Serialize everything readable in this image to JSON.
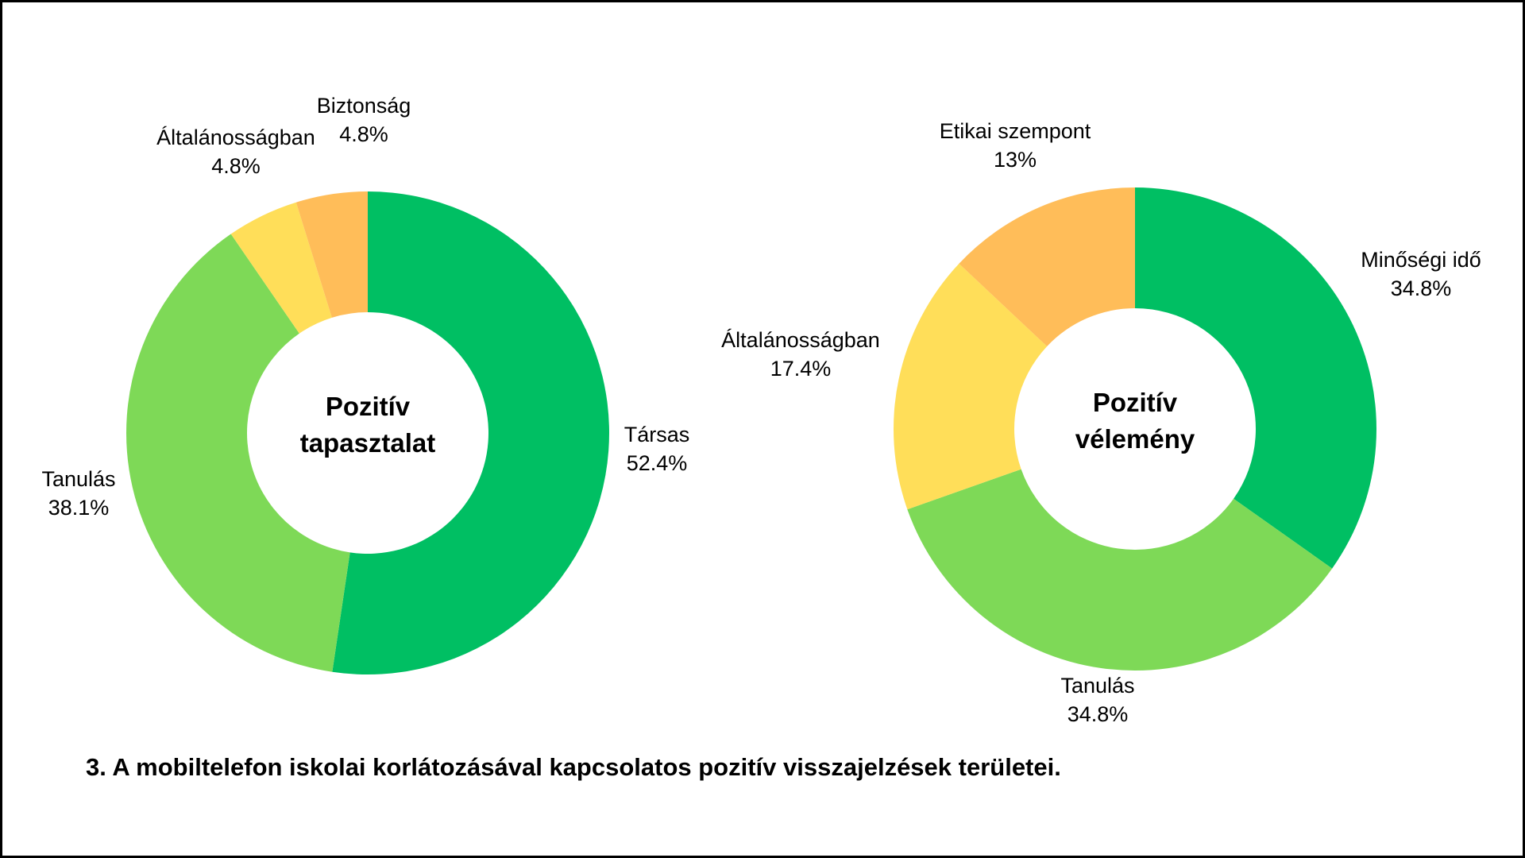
{
  "chart_data": [
    {
      "type": "donut",
      "center_label": [
        "Pozitív",
        "tapasztalat"
      ],
      "slices": [
        {
          "label": "Társas",
          "value": 52.4,
          "value_text": "52.4%",
          "color": "#00BF63"
        },
        {
          "label": "Tanulás",
          "value": 38.1,
          "value_text": "38.1%",
          "color": "#7ED957"
        },
        {
          "label": "Általánosságban",
          "value": 4.8,
          "value_text": "4.8%",
          "color": "#FFDE59"
        },
        {
          "label": "Biztonság",
          "value": 4.8,
          "value_text": "4.8%",
          "color": "#FFBD59"
        }
      ]
    },
    {
      "type": "donut",
      "center_label": [
        "Pozitív",
        "vélemény"
      ],
      "slices": [
        {
          "label": "Minőségi idő",
          "value": 34.8,
          "value_text": "34.8%",
          "color": "#00BF63"
        },
        {
          "label": "Tanulás",
          "value": 34.8,
          "value_text": "34.8%",
          "color": "#7ED957"
        },
        {
          "label": "Általánosságban",
          "value": 17.4,
          "value_text": "17.4%",
          "color": "#FFDE59"
        },
        {
          "label": "Etikai szempont",
          "value": 13,
          "value_text": "13%",
          "color": "#FFBD59"
        }
      ]
    }
  ],
  "caption": "3. A mobiltelefon iskolai korlátozásával kapcsolatos pozitív visszajelzések területei."
}
